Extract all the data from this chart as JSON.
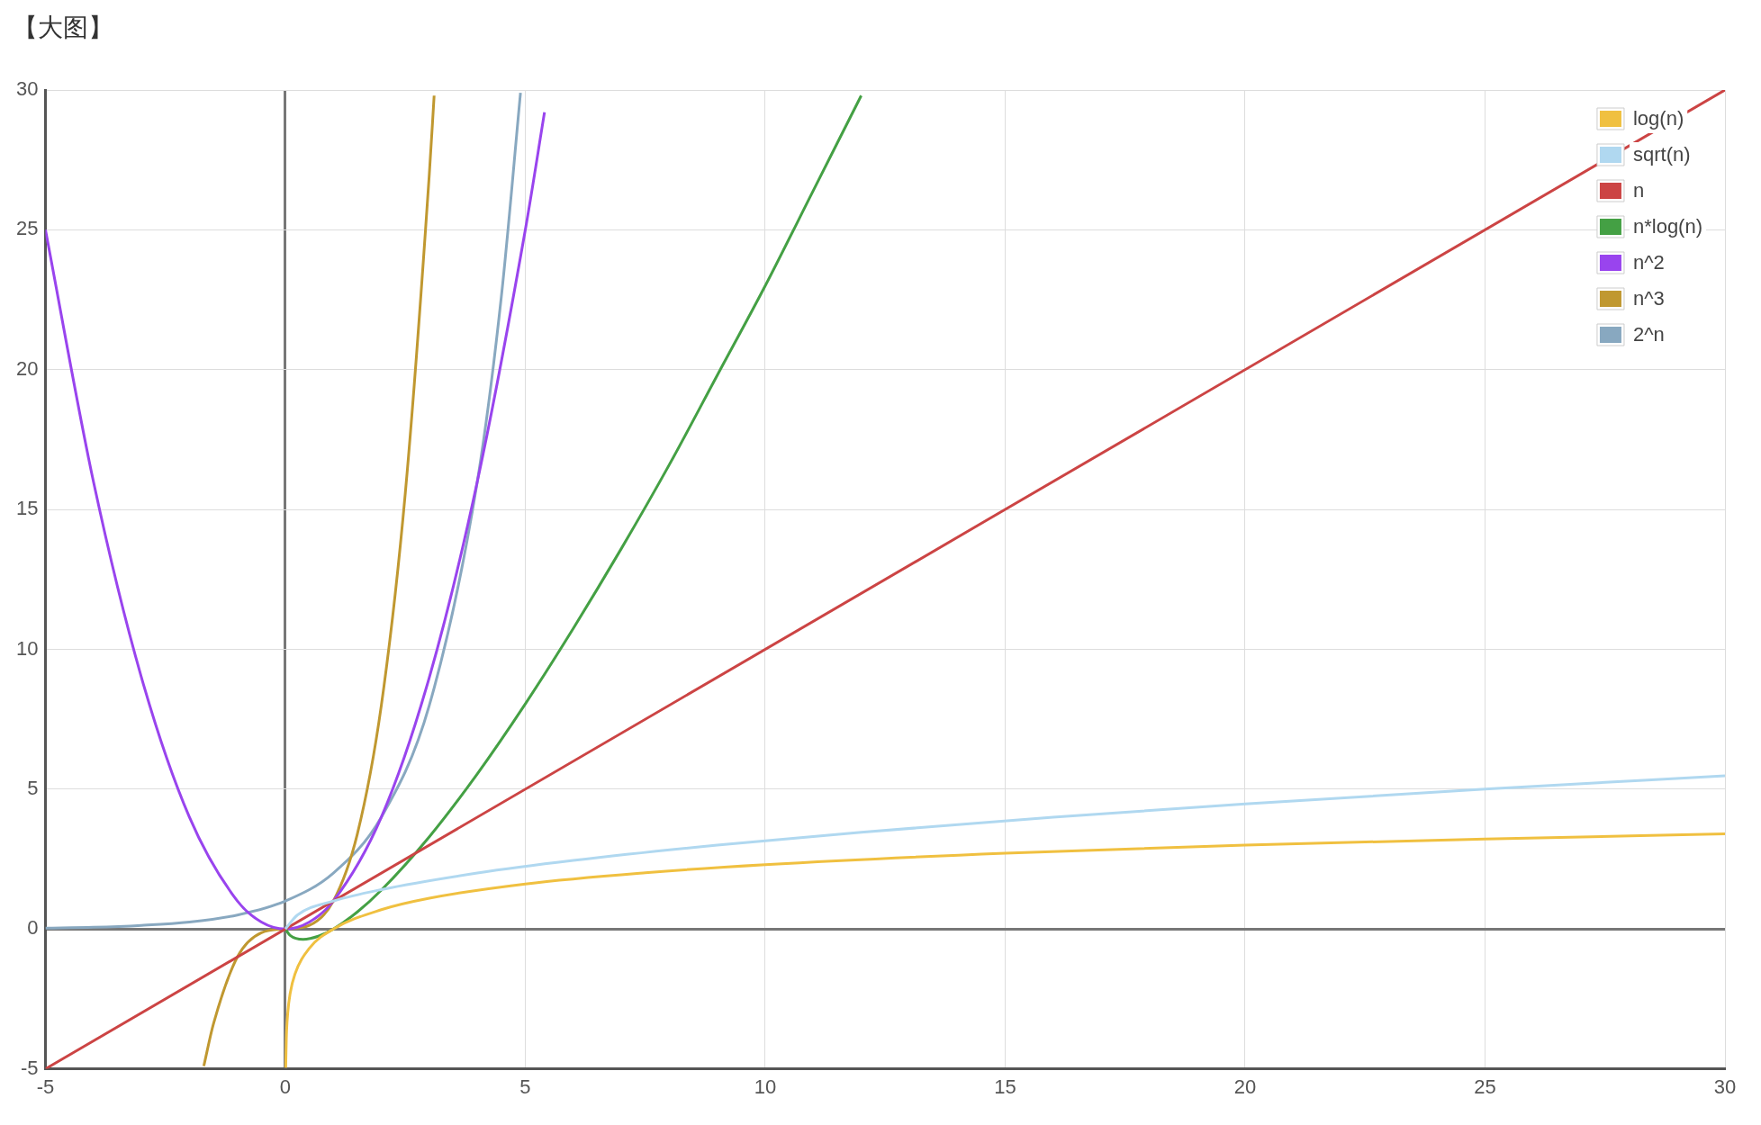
{
  "chart_data": {
    "type": "line",
    "title": "【大图】",
    "xlim": [
      -5,
      30
    ],
    "ylim": [
      -5,
      30
    ],
    "xticks": [
      -5,
      0,
      5,
      10,
      15,
      20,
      25,
      30
    ],
    "yticks": [
      -5,
      0,
      5,
      10,
      15,
      20,
      25,
      30
    ],
    "grid": true,
    "legend": "top right",
    "marker": "none",
    "series": [
      {
        "name": "log(n)",
        "color": "#f0c040",
        "x": [
          0.007,
          0.02,
          0.05,
          0.1,
          0.2,
          0.5,
          1,
          2,
          3,
          5,
          7.5,
          10,
          15,
          20,
          25,
          30
        ],
        "values": [
          -4.96,
          -3.9,
          -3.0,
          -2.3,
          -1.61,
          -0.69,
          0,
          0.69,
          1.1,
          1.61,
          2.01,
          2.3,
          2.71,
          3.0,
          3.22,
          3.4
        ]
      },
      {
        "name": "sqrt(n)",
        "color": "#b0d8f0",
        "x": [
          0,
          0.25,
          1,
          2,
          4,
          6,
          9,
          12,
          16,
          20,
          25,
          30
        ],
        "values": [
          0,
          0.5,
          1,
          1.41,
          2,
          2.45,
          3,
          3.46,
          4,
          4.47,
          5,
          5.48
        ]
      },
      {
        "name": "n",
        "color": "#cc4444",
        "x": [
          -5,
          30
        ],
        "values": [
          -5,
          30
        ]
      },
      {
        "name": "n*log(n)",
        "color": "#44a044",
        "x": [
          0,
          0.1,
          0.37,
          0.7,
          1,
          1.5,
          2,
          3,
          4,
          5,
          6,
          7,
          8,
          9,
          10,
          11,
          12
        ],
        "values": [
          0,
          -0.23,
          -0.37,
          -0.25,
          0,
          0.61,
          1.39,
          3.3,
          5.55,
          8.05,
          10.75,
          13.6,
          16.6,
          19.8,
          23.0,
          26.4,
          29.8
        ]
      },
      {
        "name": "n^2",
        "color": "#9944ee",
        "x": [
          -5,
          -4,
          -3,
          -2,
          -1,
          -0.5,
          0,
          0.5,
          1,
          2,
          3,
          4,
          5,
          5.4
        ],
        "values": [
          25,
          16,
          9,
          4,
          1,
          0.25,
          0,
          0.25,
          1,
          4,
          9,
          16,
          25,
          29.2
        ]
      },
      {
        "name": "n^3",
        "color": "#c09830",
        "x": [
          -1.7,
          -1.5,
          -1,
          -0.5,
          0,
          0.5,
          1,
          1.5,
          2,
          2.5,
          3,
          3.1
        ],
        "values": [
          -4.9,
          -3.4,
          -1,
          -0.13,
          0,
          0.13,
          1,
          3.4,
          8,
          15.6,
          27,
          29.8
        ]
      },
      {
        "name": "2^n",
        "color": "#88a8c0",
        "x": [
          -5,
          -4,
          -3,
          -2,
          -1,
          0,
          1,
          2,
          3,
          4,
          4.5,
          4.9
        ],
        "values": [
          0.03,
          0.06,
          0.13,
          0.25,
          0.5,
          1,
          2,
          4,
          8,
          16,
          22.6,
          29.9
        ]
      }
    ]
  }
}
